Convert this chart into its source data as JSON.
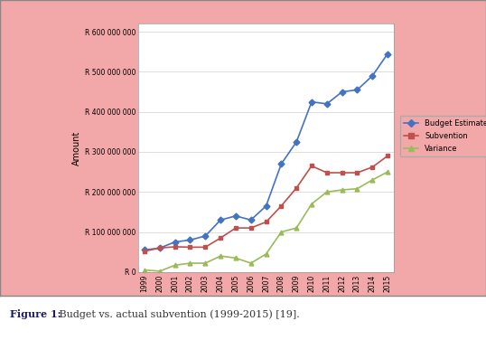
{
  "years": [
    1999,
    2000,
    2001,
    2002,
    2003,
    2004,
    2005,
    2006,
    2007,
    2008,
    2009,
    2010,
    2011,
    2012,
    2013,
    2014,
    2015
  ],
  "budget_estimate": [
    55000000,
    60000000,
    75000000,
    80000000,
    90000000,
    130000000,
    140000000,
    130000000,
    165000000,
    270000000,
    325000000,
    425000000,
    420000000,
    450000000,
    455000000,
    490000000,
    545000000
  ],
  "subvention": [
    52000000,
    60000000,
    63000000,
    62000000,
    62000000,
    85000000,
    110000000,
    110000000,
    125000000,
    165000000,
    210000000,
    265000000,
    248000000,
    248000000,
    248000000,
    262000000,
    290000000
  ],
  "variance": [
    5000000,
    2000000,
    17000000,
    22000000,
    22000000,
    40000000,
    35000000,
    22000000,
    45000000,
    100000000,
    110000000,
    170000000,
    200000000,
    205000000,
    208000000,
    230000000,
    250000000
  ],
  "budget_color": "#4472C4",
  "subvention_color": "#C0504D",
  "variance_color": "#9BBB59",
  "marker_budget": "D",
  "marker_subvention": "s",
  "marker_variance": "^",
  "ylabel": "Amount",
  "ylim": [
    0,
    620000000
  ],
  "yticks": [
    0,
    100000000,
    200000000,
    300000000,
    400000000,
    500000000,
    600000000
  ],
  "ytick_labels": [
    "R 0",
    "R 100 000 000",
    "R 200 000 000",
    "R 300 000 000",
    "R 400 000 000",
    "R 500 000 000",
    "R 600 000 000"
  ],
  "bg_outer": "#f2a8a8",
  "bg_plot": "#ffffff",
  "legend_labels": [
    "Budget Estimate",
    "Subvention",
    "Variance"
  ],
  "caption_bold": "Figure 1:",
  "caption_rest": " Budget vs. actual subvention (1999-2015) [19]."
}
